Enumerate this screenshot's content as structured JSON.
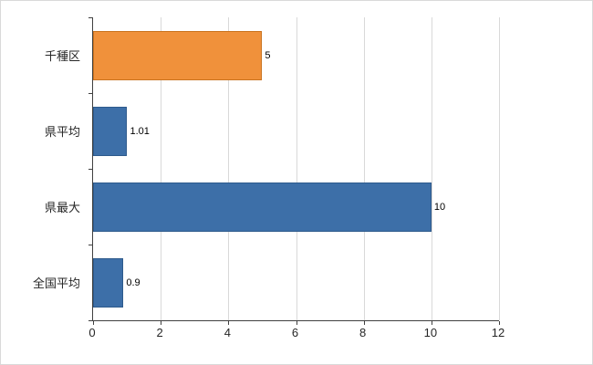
{
  "chart_data": {
    "type": "bar",
    "orientation": "horizontal",
    "title": "",
    "xlabel": "",
    "ylabel": "",
    "categories": [
      "千種区",
      "県平均",
      "県最大",
      "全国平均"
    ],
    "values": [
      5,
      1.01,
      10,
      0.9
    ],
    "value_labels": [
      "5",
      "1.01",
      "10",
      "0.9"
    ],
    "bar_colors": [
      "#F0913B",
      "#3D6FA8",
      "#3D6FA8",
      "#3D6FA8"
    ],
    "bar_border_colors": [
      "#C9731F",
      "#2E5A8C",
      "#2E5A8C",
      "#2E5A8C"
    ],
    "xlim": [
      0,
      12
    ],
    "xticks": [
      0,
      2,
      4,
      6,
      8,
      10,
      12
    ],
    "xtick_labels": [
      "0",
      "2",
      "4",
      "6",
      "8",
      "10",
      "12"
    ],
    "grid": "vertical",
    "grid_color": "#D9D9D9",
    "axis_color": "#404040",
    "tick_label_color": "#262626",
    "data_label_color": "#000000",
    "background_color": "#FFFFFF",
    "legend": "none"
  }
}
